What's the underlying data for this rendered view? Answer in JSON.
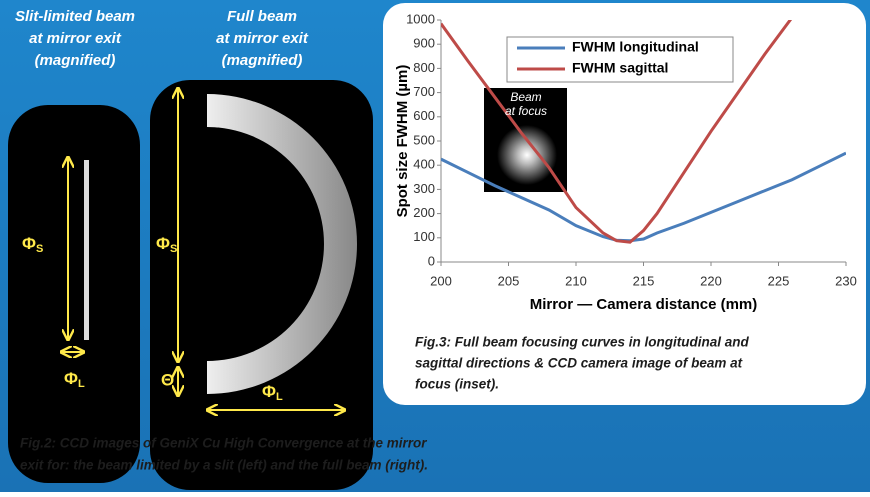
{
  "panels": {
    "left_title": [
      "Slit-limited beam",
      "at mirror exit",
      "(magnified)"
    ],
    "right_title": [
      "Full beam",
      "at mirror exit",
      "(magnified)"
    ],
    "phi": "Φ",
    "sub_s": "S",
    "sub_l": "L",
    "theta": "Θ"
  },
  "fig2_caption": [
    "Fig.2: CCD images of GeniX Cu High Convergence at the mirror",
    "exit for:  the beam limited by a slit (left) and the full beam (right)."
  ],
  "chart_data": {
    "type": "line",
    "x_label": "Mirror — Camera distance  (mm)",
    "y_label": "Spot size FWHM  (µm)",
    "x": [
      200,
      202,
      204,
      206,
      208,
      210,
      212,
      213,
      214,
      215,
      216,
      218,
      220,
      222,
      224,
      226,
      228,
      230
    ],
    "series": [
      {
        "name": "FWHM longitudinal",
        "color": "#4a7ebb",
        "values": [
          425,
          370,
          315,
          265,
          215,
          150,
          105,
          90,
          88,
          95,
          120,
          160,
          205,
          250,
          295,
          340,
          395,
          450
        ]
      },
      {
        "name": "FWHM sagittal",
        "color": "#be4b48",
        "values": [
          985,
          830,
          680,
          530,
          390,
          225,
          120,
          88,
          82,
          130,
          200,
          370,
          540,
          700,
          860,
          1010,
          null,
          null
        ]
      }
    ],
    "xlim": [
      200,
      230
    ],
    "xticks": [
      200,
      205,
      210,
      215,
      220,
      225,
      230
    ],
    "ylim": [
      0,
      1000
    ],
    "yticks": [
      0,
      100,
      200,
      300,
      400,
      500,
      600,
      700,
      800,
      900,
      1000
    ],
    "inset_label": [
      "Beam",
      "at focus"
    ],
    "caption": [
      "Fig.3: Full beam focusing curves in longitudinal and",
      "sagittal directions & CCD camera image of beam at",
      "focus (inset)."
    ]
  }
}
